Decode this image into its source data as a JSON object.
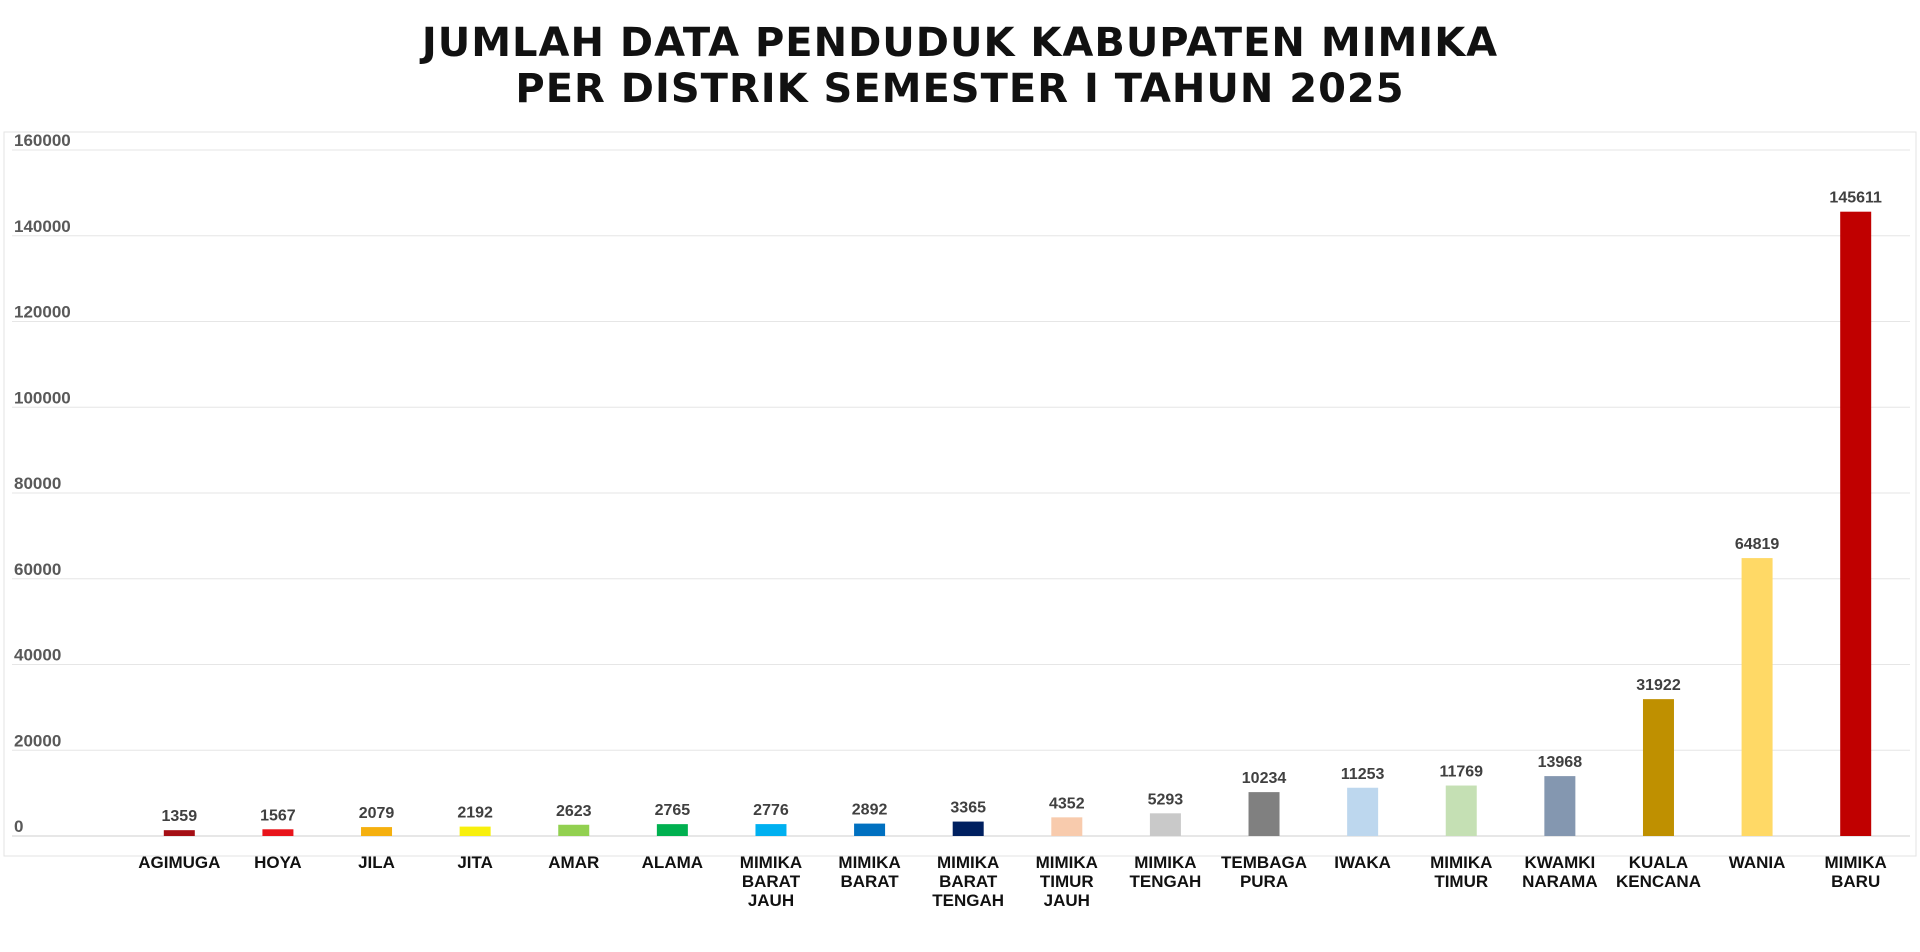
{
  "chart_data": {
    "type": "bar",
    "title_lines": [
      "JUMLAH DATA PENDUDUK KABUPATEN MIMIKA",
      "PER DISTRIK SEMESTER I TAHUN 2025"
    ],
    "categories": [
      [
        "AGIMUGA"
      ],
      [
        "HOYA"
      ],
      [
        "JILA"
      ],
      [
        "JITA"
      ],
      [
        "AMAR"
      ],
      [
        "ALAMA"
      ],
      [
        "MIMIKA",
        "BARAT",
        "JAUH"
      ],
      [
        "MIMIKA",
        "BARAT"
      ],
      [
        "MIMIKA",
        "BARAT",
        "TENGAH"
      ],
      [
        "MIMIKA",
        "TIMUR",
        "JAUH"
      ],
      [
        "MIMIKA",
        "TENGAH"
      ],
      [
        "TEMBAGA",
        "PURA"
      ],
      [
        "IWAKA"
      ],
      [
        "MIMIKA",
        "TIMUR"
      ],
      [
        "KWAMKI",
        "NARAMA"
      ],
      [
        "KUALA",
        "KENCANA"
      ],
      [
        "WANIA"
      ],
      [
        "MIMIKA",
        "BARU"
      ]
    ],
    "values": [
      1359,
      1567,
      2079,
      2192,
      2623,
      2765,
      2776,
      2892,
      3365,
      4352,
      5293,
      10234,
      11253,
      11769,
      13968,
      31922,
      64819,
      145611
    ],
    "colors": [
      "#a50f15",
      "#e8141b",
      "#f5b00f",
      "#f8f00c",
      "#92d050",
      "#00b050",
      "#00b0f0",
      "#0070c0",
      "#002060",
      "#f8cbad",
      "#c9c9c9",
      "#808080",
      "#bdd7ee",
      "#c5e0b4",
      "#8497b0",
      "#bf9000",
      "#ffd966",
      "#c00000"
    ],
    "ylim": [
      0,
      160000
    ],
    "yticks": [
      0,
      20000,
      40000,
      60000,
      80000,
      100000,
      120000,
      140000,
      160000
    ],
    "grid": true,
    "legend": "none",
    "data_labels": true
  }
}
